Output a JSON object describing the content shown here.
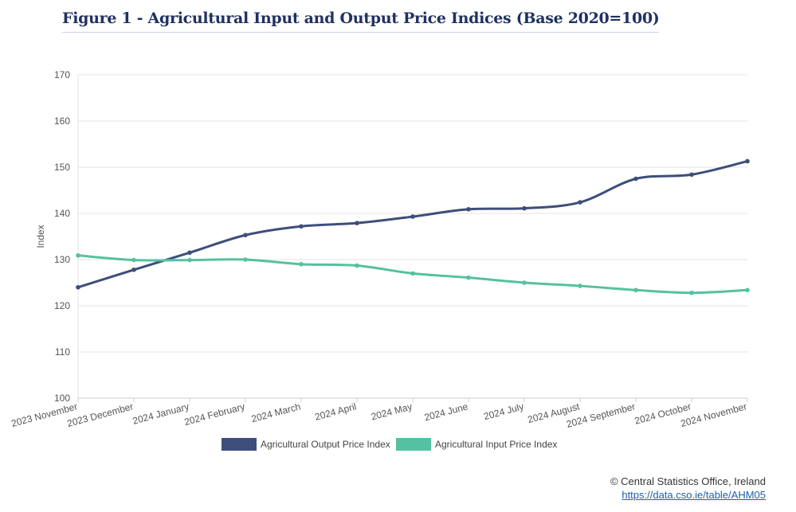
{
  "title": "Figure 1 - Agricultural Input and Output Price Indices (Base 2020=100)",
  "chart_data": {
    "type": "line",
    "title": "Figure 1 - Agricultural Input and Output Price Indices (Base 2020=100)",
    "ylabel": "Index",
    "xlabel": "",
    "ylim": [
      100,
      170
    ],
    "yticks": [
      100,
      110,
      120,
      130,
      140,
      150,
      160,
      170
    ],
    "grid": true,
    "legend_position": "bottom",
    "categories": [
      "2023 November",
      "2023 December",
      "2024 January",
      "2024 February",
      "2024 March",
      "2024 April",
      "2024 May",
      "2024 June",
      "2024 July",
      "2024 August",
      "2024 September",
      "2024 October",
      "2024 November"
    ],
    "series": [
      {
        "name": "Agricultural Output Price Index",
        "color": "#3d4e7a",
        "values": [
          124.0,
          127.8,
          131.5,
          135.3,
          137.2,
          137.9,
          139.3,
          140.9,
          141.1,
          142.4,
          147.5,
          148.4,
          151.3
        ]
      },
      {
        "name": "Agricultural Input Price Index",
        "color": "#55c1a0",
        "values": [
          130.9,
          129.9,
          129.9,
          130.0,
          129.0,
          128.7,
          127.0,
          126.1,
          125.0,
          124.3,
          123.4,
          122.8,
          123.4
        ]
      }
    ]
  },
  "credit": {
    "text": "© Central Statistics Office, Ireland",
    "link": "https://data.cso.ie/table/AHM05"
  }
}
